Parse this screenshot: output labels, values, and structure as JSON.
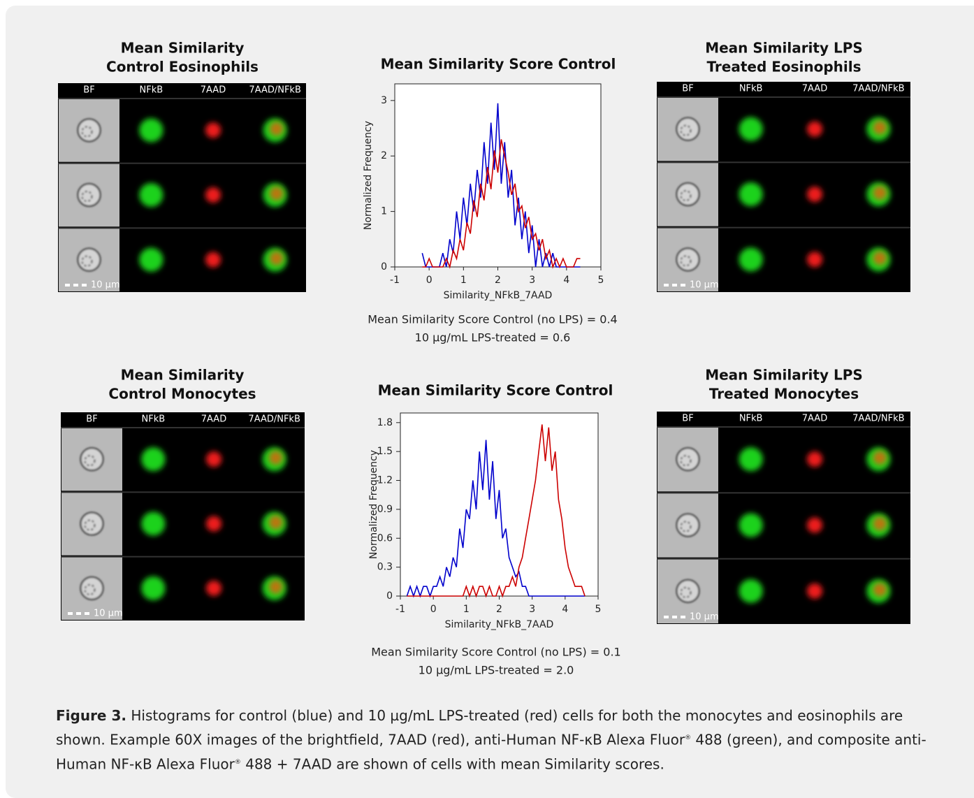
{
  "panels": [
    {
      "title": [
        "Mean Similarity",
        "Control Eosinophils"
      ],
      "columns": [
        "BF",
        "NFkB",
        "7AAD",
        "7AAD/NFkB"
      ],
      "scale_label": "10 µm"
    },
    {
      "title": [
        "Mean Similarity LPS",
        "Treated Eosinophils"
      ],
      "columns": [
        "BF",
        "NFkB",
        "7AAD",
        "7AAD/NFkB"
      ],
      "scale_label": "10 µm"
    },
    {
      "title": [
        "Mean Similarity",
        "Control Monocytes"
      ],
      "columns": [
        "BF",
        "NFkB",
        "7AAD",
        "7AAD/NFkB"
      ],
      "scale_label": "10 µm"
    },
    {
      "title": [
        "Mean Similarity LPS",
        "Treated Monocytes"
      ],
      "columns": [
        "BF",
        "NFkB",
        "7AAD",
        "7AAD/NFkB"
      ],
      "scale_label": "10 µm"
    }
  ],
  "chart_data": [
    {
      "type": "line",
      "title": "Mean Similarity Score Control",
      "x_label": "Similarity_NFkB_7AAD",
      "y_label": "Normalized Frequency",
      "xlim": [
        -1,
        5
      ],
      "xticks": [
        -1,
        0,
        1,
        2,
        3,
        4,
        5
      ],
      "ylim": [
        0,
        3.3
      ],
      "yticks": [
        0,
        1,
        2,
        3
      ],
      "x": [
        -0.2,
        -0.1,
        0,
        0.1,
        0.2,
        0.3,
        0.4,
        0.5,
        0.6,
        0.7,
        0.8,
        0.9,
        1.0,
        1.1,
        1.2,
        1.3,
        1.4,
        1.5,
        1.6,
        1.7,
        1.8,
        1.9,
        2.0,
        2.1,
        2.2,
        2.3,
        2.4,
        2.5,
        2.6,
        2.7,
        2.8,
        2.9,
        3.0,
        3.1,
        3.2,
        3.3,
        3.4,
        3.5,
        3.6,
        3.7,
        3.8,
        3.9,
        4.0,
        4.1,
        4.2,
        4.3,
        4.4
      ],
      "series": [
        {
          "color": "#0000cc",
          "values": [
            0.25,
            0,
            0,
            0,
            0,
            0,
            0.25,
            0,
            0.5,
            0.25,
            1.0,
            0.5,
            1.25,
            0.75,
            1.5,
            1.0,
            1.75,
            1.25,
            2.25,
            1.5,
            2.6,
            1.75,
            2.95,
            1.5,
            2.25,
            1.25,
            1.75,
            0.75,
            1.25,
            0.5,
            1.0,
            0.25,
            0.75,
            0,
            0.5,
            0,
            0.25,
            0,
            0.25,
            0,
            0,
            0,
            0,
            0,
            0,
            0,
            0
          ]
        },
        {
          "color": "#cc0000",
          "values": [
            0,
            0,
            0.15,
            0,
            0,
            0,
            0,
            0.15,
            0,
            0.3,
            0.15,
            0.5,
            0.3,
            0.8,
            0.6,
            1.2,
            0.9,
            1.5,
            1.2,
            1.8,
            1.4,
            2.1,
            1.7,
            2.3,
            2.0,
            1.7,
            1.3,
            1.5,
            1.0,
            1.1,
            0.7,
            0.9,
            0.5,
            0.6,
            0.3,
            0.5,
            0.15,
            0.3,
            0,
            0.15,
            0,
            0.15,
            0,
            0,
            0,
            0.15,
            0.15
          ]
        }
      ],
      "notes": [
        "Mean Similarity Score  Control (no LPS) = 0.4",
        "10 µg/mL LPS-treated = 0.6"
      ]
    },
    {
      "type": "line",
      "title": "Mean Similarity Score Control",
      "x_label": "Similarity_NFkB_7AAD",
      "y_label": "Normalized Frequency",
      "xlim": [
        -1,
        5
      ],
      "xticks": [
        -1,
        0,
        1,
        2,
        3,
        4,
        5
      ],
      "ylim": [
        0,
        1.9
      ],
      "yticks": [
        0,
        0.3,
        0.6,
        0.9,
        1.2,
        1.5,
        1.8
      ],
      "x": [
        -0.8,
        -0.7,
        -0.6,
        -0.5,
        -0.4,
        -0.3,
        -0.2,
        -0.1,
        0,
        0.1,
        0.2,
        0.3,
        0.4,
        0.5,
        0.6,
        0.7,
        0.8,
        0.9,
        1.0,
        1.1,
        1.2,
        1.3,
        1.4,
        1.5,
        1.6,
        1.7,
        1.8,
        1.9,
        2.0,
        2.1,
        2.2,
        2.3,
        2.4,
        2.5,
        2.6,
        2.7,
        2.8,
        2.9,
        3.0,
        3.1,
        3.2,
        3.3,
        3.4,
        3.5,
        3.6,
        3.7,
        3.8,
        3.9,
        4.0,
        4.1,
        4.2,
        4.3,
        4.4,
        4.5,
        4.6
      ],
      "series": [
        {
          "color": "#0000cc",
          "values": [
            0,
            0.1,
            0,
            0.1,
            0,
            0.1,
            0.1,
            0,
            0.1,
            0.1,
            0.2,
            0.1,
            0.3,
            0.2,
            0.4,
            0.3,
            0.7,
            0.5,
            0.9,
            0.8,
            1.2,
            0.9,
            1.5,
            1.1,
            1.62,
            1.0,
            1.4,
            0.8,
            1.1,
            0.6,
            0.7,
            0.4,
            0.3,
            0.2,
            0.25,
            0.1,
            0.1,
            0,
            0,
            0,
            0,
            0,
            0,
            0,
            0,
            0,
            0,
            0,
            0,
            0,
            0,
            0,
            0,
            0,
            0
          ]
        },
        {
          "color": "#cc0000",
          "values": [
            0,
            0,
            0,
            0,
            0,
            0,
            0,
            0,
            0,
            0,
            0,
            0,
            0,
            0,
            0,
            0,
            0,
            0,
            0.1,
            0,
            0.1,
            0,
            0.1,
            0.1,
            0,
            0.1,
            0,
            0,
            0.1,
            0,
            0.1,
            0.1,
            0.2,
            0.1,
            0.3,
            0.4,
            0.6,
            0.8,
            1.0,
            1.2,
            1.5,
            1.78,
            1.4,
            1.75,
            1.3,
            1.5,
            1.0,
            0.8,
            0.5,
            0.3,
            0.2,
            0.1,
            0.1,
            0.1,
            0
          ]
        }
      ],
      "notes": [
        "Mean Similarity Score  Control (no LPS) = 0.1",
        "10 µg/mL LPS-treated = 2.0"
      ]
    }
  ],
  "caption": {
    "label": "Figure 3.",
    "parts": [
      " Histograms for control (blue) and 10 µg/mL LPS-treated (red) cells for both the monocytes and eosinophils are shown. Example 60X images of the brightfield, 7AAD (red), anti-Human NF-κB Alexa Fluor",
      "®",
      " 488 (green), and composite anti-Human NF-κB Alexa Fluor",
      "®",
      " 488 + 7AAD are shown of cells with mean Similarity scores."
    ]
  }
}
